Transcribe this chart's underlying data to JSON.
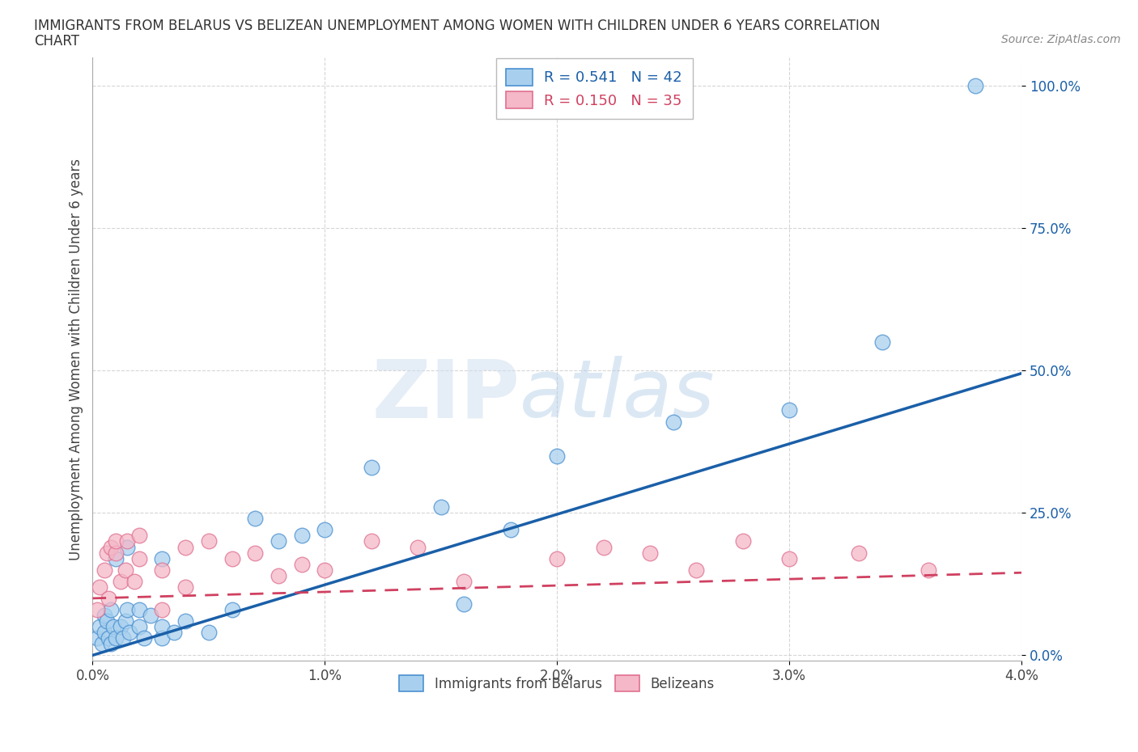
{
  "title_line1": "IMMIGRANTS FROM BELARUS VS BELIZEAN UNEMPLOYMENT AMONG WOMEN WITH CHILDREN UNDER 6 YEARS CORRELATION",
  "title_line2": "CHART",
  "source_text": "Source: ZipAtlas.com",
  "ylabel": "Unemployment Among Women with Children Under 6 years",
  "xlim": [
    0.0,
    0.04
  ],
  "ylim": [
    -0.01,
    1.05
  ],
  "xticks": [
    0.0,
    0.01,
    0.02,
    0.03,
    0.04
  ],
  "xtick_labels": [
    "0.0%",
    "1.0%",
    "2.0%",
    "3.0%",
    "4.0%"
  ],
  "yticks": [
    0.0,
    0.25,
    0.5,
    0.75,
    1.0
  ],
  "ytick_labels": [
    "0.0%",
    "25.0%",
    "50.0%",
    "75.0%",
    "100.0%"
  ],
  "watermark_zip": "ZIP",
  "watermark_atlas": "atlas",
  "blue_R": 0.541,
  "blue_N": 42,
  "pink_R": 0.15,
  "pink_N": 35,
  "blue_fill": "#a8d0ee",
  "pink_fill": "#f4b8c8",
  "blue_edge": "#4a90d0",
  "pink_edge": "#e07090",
  "blue_line_color": "#1a5fa8",
  "pink_line_color": "#d04060",
  "legend_label1": "Immigrants from Belarus",
  "legend_label2": "Belizeans",
  "blue_scatter_x": [
    0.0002,
    0.0003,
    0.0004,
    0.0005,
    0.0005,
    0.0006,
    0.0007,
    0.0008,
    0.0008,
    0.0009,
    0.001,
    0.001,
    0.0012,
    0.0013,
    0.0014,
    0.0015,
    0.0015,
    0.0016,
    0.002,
    0.002,
    0.0022,
    0.0025,
    0.003,
    0.003,
    0.003,
    0.0035,
    0.004,
    0.005,
    0.006,
    0.007,
    0.008,
    0.009,
    0.01,
    0.012,
    0.015,
    0.016,
    0.018,
    0.02,
    0.025,
    0.03,
    0.034,
    0.038
  ],
  "blue_scatter_y": [
    0.03,
    0.05,
    0.02,
    0.07,
    0.04,
    0.06,
    0.03,
    0.08,
    0.02,
    0.05,
    0.03,
    0.17,
    0.05,
    0.03,
    0.06,
    0.19,
    0.08,
    0.04,
    0.08,
    0.05,
    0.03,
    0.07,
    0.03,
    0.05,
    0.17,
    0.04,
    0.06,
    0.04,
    0.08,
    0.24,
    0.2,
    0.21,
    0.22,
    0.33,
    0.26,
    0.09,
    0.22,
    0.35,
    0.41,
    0.43,
    0.55,
    1.0
  ],
  "pink_scatter_x": [
    0.0002,
    0.0003,
    0.0005,
    0.0006,
    0.0007,
    0.0008,
    0.001,
    0.001,
    0.0012,
    0.0014,
    0.0015,
    0.0018,
    0.002,
    0.002,
    0.003,
    0.003,
    0.004,
    0.004,
    0.005,
    0.006,
    0.007,
    0.008,
    0.009,
    0.01,
    0.012,
    0.014,
    0.016,
    0.02,
    0.022,
    0.024,
    0.026,
    0.028,
    0.03,
    0.033,
    0.036
  ],
  "pink_scatter_y": [
    0.08,
    0.12,
    0.15,
    0.18,
    0.1,
    0.19,
    0.18,
    0.2,
    0.13,
    0.15,
    0.2,
    0.13,
    0.17,
    0.21,
    0.08,
    0.15,
    0.19,
    0.12,
    0.2,
    0.17,
    0.18,
    0.14,
    0.16,
    0.15,
    0.2,
    0.19,
    0.13,
    0.17,
    0.19,
    0.18,
    0.15,
    0.2,
    0.17,
    0.18,
    0.15
  ],
  "blue_line_x": [
    0.0,
    0.04
  ],
  "blue_line_y": [
    0.0,
    0.495
  ],
  "pink_line_x": [
    0.0,
    0.04
  ],
  "pink_line_y": [
    0.1,
    0.145
  ],
  "background_color": "#ffffff",
  "grid_color": "#cccccc"
}
